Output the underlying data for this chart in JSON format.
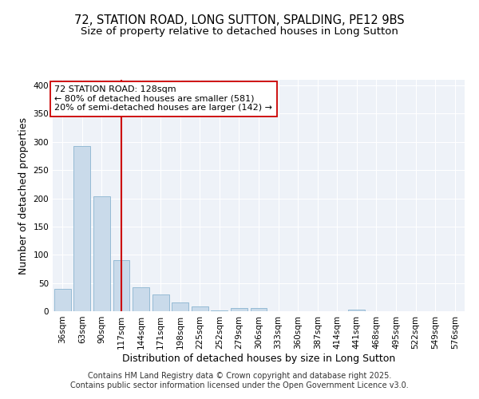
{
  "title_line1": "72, STATION ROAD, LONG SUTTON, SPALDING, PE12 9BS",
  "title_line2": "Size of property relative to detached houses in Long Sutton",
  "xlabel": "Distribution of detached houses by size in Long Sutton",
  "ylabel": "Number of detached properties",
  "categories": [
    "36sqm",
    "63sqm",
    "90sqm",
    "117sqm",
    "144sqm",
    "171sqm",
    "198sqm",
    "225sqm",
    "252sqm",
    "279sqm",
    "306sqm",
    "333sqm",
    "360sqm",
    "387sqm",
    "414sqm",
    "441sqm",
    "468sqm",
    "495sqm",
    "522sqm",
    "549sqm",
    "576sqm"
  ],
  "values": [
    39,
    293,
    204,
    90,
    43,
    30,
    16,
    9,
    2,
    5,
    5,
    0,
    0,
    0,
    0,
    3,
    0,
    0,
    0,
    0,
    0
  ],
  "bar_color": "#c9daea",
  "bar_edge_color": "#8ab4d0",
  "bar_width": 0.85,
  "vline_x": 3,
  "vline_color": "#cc0000",
  "annotation_text": "72 STATION ROAD: 128sqm\n← 80% of detached houses are smaller (581)\n20% of semi-detached houses are larger (142) →",
  "annotation_box_color": "#ffffff",
  "annotation_box_edge": "#cc0000",
  "ylim": [
    0,
    410
  ],
  "yticks": [
    0,
    50,
    100,
    150,
    200,
    250,
    300,
    350,
    400
  ],
  "bg_color": "#eef2f8",
  "grid_color": "#ffffff",
  "footer_line1": "Contains HM Land Registry data © Crown copyright and database right 2025.",
  "footer_line2": "Contains public sector information licensed under the Open Government Licence v3.0.",
  "title_fontsize": 10.5,
  "subtitle_fontsize": 9.5,
  "axis_label_fontsize": 9,
  "tick_fontsize": 7.5,
  "annotation_fontsize": 8,
  "footer_fontsize": 7
}
